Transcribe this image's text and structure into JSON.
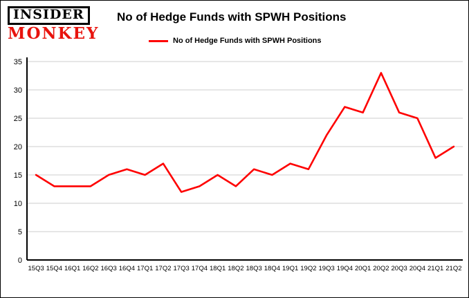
{
  "header": {
    "logo_line1": "INSIDER",
    "logo_line2": "MONKEY",
    "title": "No of Hedge Funds with SPWH Positions"
  },
  "legend": {
    "label": "No of Hedge Funds with SPWH Positions"
  },
  "colors": {
    "line": "#fe0000",
    "grid": "#cccccc",
    "axis": "#000000",
    "logo_red": "#e8130d",
    "text": "#000000"
  },
  "chart_data": {
    "type": "line",
    "title": "No of Hedge Funds with SPWH Positions",
    "categories": [
      "15Q3",
      "15Q4",
      "16Q1",
      "16Q2",
      "16Q3",
      "16Q4",
      "17Q1",
      "17Q2",
      "17Q3",
      "17Q4",
      "18Q1",
      "18Q2",
      "18Q3",
      "18Q4",
      "19Q1",
      "19Q2",
      "19Q3",
      "19Q4",
      "20Q1",
      "20Q2",
      "20Q3",
      "20Q4",
      "21Q1",
      "21Q2"
    ],
    "values": [
      15,
      13,
      13,
      13,
      15,
      16,
      15,
      17,
      12,
      13,
      15,
      13,
      16,
      15,
      17,
      16,
      22,
      27,
      26,
      33,
      26,
      25,
      18,
      20
    ],
    "xlabel": "",
    "ylabel": "",
    "ylim": [
      0,
      35
    ],
    "ytick_step": 5,
    "grid": "horizontal-only",
    "legend_position": "top"
  }
}
